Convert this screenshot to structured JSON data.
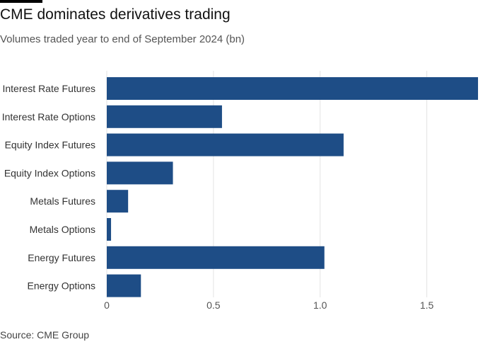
{
  "header": {
    "title": "CME dominates derivatives trading",
    "subtitle": "Volumes traded year to end of September 2024 (bn)"
  },
  "footer": {
    "source": "Source: CME Group"
  },
  "chart_data": {
    "type": "bar",
    "orientation": "horizontal",
    "title": "CME dominates derivatives trading",
    "subtitle": "Volumes traded year to end of September 2024 (bn)",
    "xlabel": "",
    "ylabel": "",
    "categories": [
      "Interest Rate Futures",
      "Interest Rate Options",
      "Equity Index Futures",
      "Equity Index Options",
      "Metals Futures",
      "Metals Options",
      "Energy Futures",
      "Energy Options"
    ],
    "values": [
      1.74,
      0.54,
      1.11,
      0.31,
      0.1,
      0.02,
      1.02,
      0.16
    ],
    "xlim": [
      0,
      1.75
    ],
    "ticks": [
      0,
      0.5,
      1.0,
      1.5
    ],
    "tick_labels": [
      "0",
      "0.5",
      "1.0",
      "1.5"
    ],
    "grid": "vertical",
    "legend": "none",
    "colors": {
      "bar": "#1e4d86",
      "grid": "#e3e3e3",
      "tick_text": "#555555",
      "category_text": "#333333"
    }
  }
}
